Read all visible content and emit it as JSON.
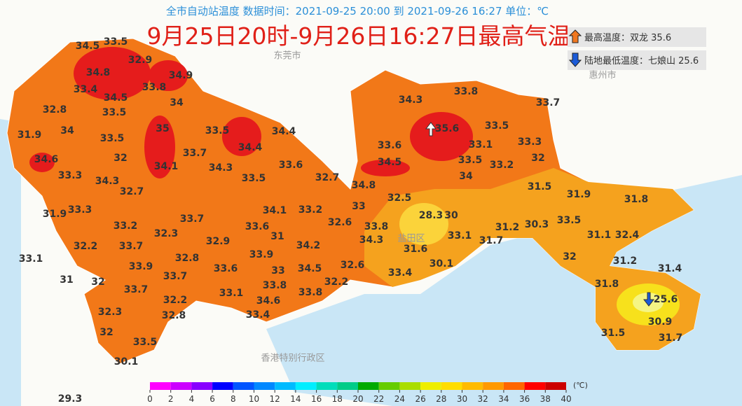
{
  "header": {
    "subtitle": "全市自动站温度  数据时间：2021-09-25 20:00 到 2021-09-26 16:27  单位：℃",
    "title": "9月25日20时-9月26日16:27日最高气温"
  },
  "extremes": [
    {
      "label": "最高温度：双龙",
      "value": 35.6
    },
    {
      "label": "陆地最低温度：七娘山",
      "value": 25.6
    }
  ],
  "places": [
    "东莞市",
    "惠州市",
    "香港特别行政区",
    "盐田区"
  ],
  "stations": [
    34.5,
    33.5,
    34.8,
    32.9,
    34.9,
    33.4,
    34.5,
    33.8,
    32.8,
    33.5,
    34,
    31.9,
    34,
    33.5,
    35,
    33.5,
    34.4,
    34.6,
    32,
    33.7,
    34.4,
    33.3,
    34.1,
    34.3,
    33.6,
    32.7,
    34.3,
    32.7,
    33.5,
    31.9,
    33.3,
    33.7,
    34.1,
    33.2,
    33.2,
    33.6,
    32.6,
    32.3,
    31,
    32.2,
    33.7,
    32.9,
    34.2,
    33.1,
    32.8,
    33.9,
    33.9,
    33.6,
    33,
    34.5,
    32.6,
    31,
    32,
    33.7,
    33.7,
    33.8,
    33.1,
    32.2,
    33.8,
    34.6,
    32.2,
    33.4,
    32.3,
    32.8,
    32,
    33.5,
    30.1,
    29.3,
    34.3,
    33.8,
    33.7,
    33.5,
    33.6,
    33.1,
    33.3,
    34.5,
    33.5,
    32,
    34,
    33.2,
    34.8,
    31.5,
    33,
    32.5,
    31.9,
    31.8,
    28.3,
    30,
    33.8,
    31.2,
    30.3,
    33.5,
    34.3,
    33.1,
    31.7,
    31.1,
    32.4,
    31.6,
    30.1,
    32,
    31.2,
    31.4,
    33.4,
    31.8,
    30.9,
    31.5,
    31.7
  ],
  "color_scale": {
    "unit": "(℃)",
    "ticks": [
      0,
      2,
      4,
      6,
      8,
      10,
      12,
      14,
      16,
      18,
      20,
      22,
      24,
      26,
      28,
      30,
      32,
      34,
      36,
      38,
      40
    ],
    "colors": [
      "#ff00ff",
      "#cc00ff",
      "#8800ff",
      "#0000ff",
      "#0055ff",
      "#0088ff",
      "#00bbff",
      "#00eeff",
      "#00ddbb",
      "#00cc88",
      "#00aa00",
      "#66cc00",
      "#aadd00",
      "#eeee00",
      "#ffdd00",
      "#ffbb00",
      "#ff9900",
      "#ff6600",
      "#ff0000",
      "#cc0000",
      "#990000"
    ]
  }
}
